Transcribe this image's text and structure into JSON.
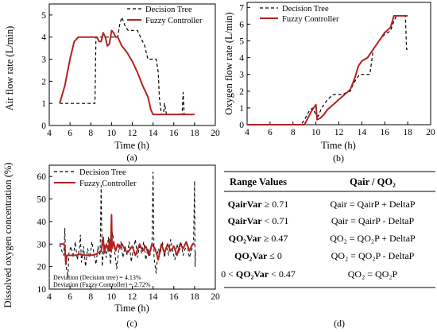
{
  "chart_data": [
    {
      "type": "line",
      "panel_label": "(a)",
      "xlabel": "Time (h)",
      "ylabel": "Air flow rate (L/min)",
      "xlim": [
        4,
        20
      ],
      "ylim": [
        0,
        5.5
      ],
      "xticks": [
        4,
        6,
        8,
        10,
        12,
        14,
        16,
        18,
        20
      ],
      "yticks": [
        0,
        1,
        2,
        3,
        4,
        5
      ],
      "grid": false,
      "legend_position": "top-right",
      "series": [
        {
          "name": "Decision Tree",
          "color": "#000000",
          "dashed": true,
          "points": [
            [
              5,
              1
            ],
            [
              8.4,
              1
            ],
            [
              8.5,
              4
            ],
            [
              10.6,
              4
            ],
            [
              10.8,
              4.6
            ],
            [
              11.0,
              4.9
            ],
            [
              11.3,
              4.5
            ],
            [
              11.6,
              4.3
            ],
            [
              12.5,
              4.3
            ],
            [
              12.8,
              4.0
            ],
            [
              13.2,
              3.6
            ],
            [
              13.5,
              3.0
            ],
            [
              14.3,
              3.0
            ],
            [
              14.5,
              2.4
            ],
            [
              14.6,
              1.3
            ],
            [
              14.8,
              0.5
            ],
            [
              15.0,
              0.5
            ],
            [
              15.1,
              1.0
            ],
            [
              15.3,
              0.5
            ],
            [
              16.8,
              0.5
            ],
            [
              16.9,
              1.5
            ],
            [
              17.0,
              0.5
            ],
            [
              18.0,
              0.5
            ]
          ]
        },
        {
          "name": "Fuzzy Controller",
          "color": "#b22222",
          "dashed": false,
          "points": [
            [
              5,
              1
            ],
            [
              5.5,
              1.8
            ],
            [
              6,
              3.0
            ],
            [
              6.4,
              3.8
            ],
            [
              6.8,
              4.0
            ],
            [
              8.6,
              4.0
            ],
            [
              8.8,
              3.8
            ],
            [
              9.0,
              3.8
            ],
            [
              9.2,
              4.2
            ],
            [
              9.4,
              4.0
            ],
            [
              9.6,
              3.6
            ],
            [
              9.8,
              3.7
            ],
            [
              10.0,
              4.3
            ],
            [
              10.2,
              4.2
            ],
            [
              10.4,
              4.0
            ],
            [
              10.6,
              4.0
            ],
            [
              11.0,
              3.6
            ],
            [
              11.5,
              3.3
            ],
            [
              12.0,
              2.9
            ],
            [
              12.5,
              2.4
            ],
            [
              13.0,
              1.8
            ],
            [
              13.5,
              1.3
            ],
            [
              13.8,
              0.7
            ],
            [
              14.0,
              0.5
            ],
            [
              18.0,
              0.5
            ]
          ]
        }
      ]
    },
    {
      "type": "line",
      "panel_label": "(b)",
      "xlabel": "Time (h)",
      "ylabel": "Oxygen flow rate (L/min)",
      "xlim": [
        4,
        20
      ],
      "ylim": [
        0,
        7.3
      ],
      "xticks": [
        4,
        6,
        8,
        10,
        12,
        14,
        16,
        18,
        20
      ],
      "yticks": [
        0,
        1,
        2,
        3,
        4,
        5,
        6,
        7
      ],
      "grid": false,
      "legend_position": "top-left",
      "series": [
        {
          "name": "Decision Tree",
          "color": "#000000",
          "dashed": true,
          "points": [
            [
              4,
              0
            ],
            [
              8.7,
              0
            ],
            [
              9.0,
              0.3
            ],
            [
              9.4,
              0.8
            ],
            [
              9.7,
              1.0
            ],
            [
              10.0,
              0.6
            ],
            [
              10.2,
              0.5
            ],
            [
              10.5,
              1.0
            ],
            [
              11.0,
              1.5
            ],
            [
              11.5,
              1.8
            ],
            [
              12.3,
              1.8
            ],
            [
              12.6,
              1.9
            ],
            [
              13.0,
              2.0
            ],
            [
              13.3,
              2.5
            ],
            [
              13.8,
              3.0
            ],
            [
              14.7,
              3.0
            ],
            [
              15.0,
              4.5
            ],
            [
              15.5,
              5.0
            ],
            [
              16.0,
              5.4
            ],
            [
              16.5,
              5.6
            ],
            [
              16.7,
              6.0
            ],
            [
              17.0,
              6.5
            ],
            [
              17.8,
              6.5
            ],
            [
              17.9,
              4.5
            ],
            [
              18.0,
              4.5
            ]
          ]
        },
        {
          "name": "Fuzzy Controller",
          "color": "#b22222",
          "dashed": false,
          "points": [
            [
              4,
              0
            ],
            [
              9.0,
              0
            ],
            [
              9.3,
              0.4
            ],
            [
              9.6,
              0.8
            ],
            [
              9.9,
              1.1
            ],
            [
              10.0,
              1.2
            ],
            [
              10.1,
              0.3
            ],
            [
              10.4,
              0.4
            ],
            [
              10.7,
              0.6
            ],
            [
              11.0,
              0.9
            ],
            [
              11.5,
              1.2
            ],
            [
              12.0,
              1.5
            ],
            [
              12.5,
              1.8
            ],
            [
              13.0,
              2.1
            ],
            [
              13.4,
              2.8
            ],
            [
              13.7,
              3.5
            ],
            [
              14.0,
              3.8
            ],
            [
              14.5,
              4.0
            ],
            [
              15.0,
              4.5
            ],
            [
              15.5,
              5.0
            ],
            [
              16.0,
              5.5
            ],
            [
              16.5,
              5.8
            ],
            [
              16.8,
              6.5
            ],
            [
              18.0,
              6.5
            ]
          ]
        }
      ]
    },
    {
      "type": "line",
      "panel_label": "(c)",
      "xlabel": "Time (h)",
      "ylabel": "Dissolved oxygen concentration (%)",
      "xlim": [
        4,
        20
      ],
      "ylim": [
        10,
        65
      ],
      "xticks": [
        4,
        6,
        8,
        10,
        12,
        14,
        16,
        18,
        20
      ],
      "yticks": [
        10,
        20,
        30,
        40,
        50,
        60
      ],
      "grid": false,
      "legend_position": "top-left",
      "annotations": [
        "Deviation (Decision tree) = 4.13%",
        "Deviation (Fuzzy Controller) = 2.72%"
      ],
      "series": [
        {
          "name": "Decision Tree",
          "color": "#000000",
          "dashed": true,
          "points": [
            [
              5.0,
              30
            ],
            [
              5.2,
              27
            ],
            [
              5.4,
              25
            ],
            [
              5.5,
              37
            ],
            [
              5.6,
              21
            ],
            [
              5.8,
              15
            ],
            [
              5.9,
              26
            ],
            [
              6.1,
              29
            ],
            [
              6.3,
              24
            ],
            [
              6.5,
              31
            ],
            [
              6.7,
              23
            ],
            [
              6.9,
              28
            ],
            [
              7.0,
              34
            ],
            [
              7.1,
              22
            ],
            [
              7.3,
              29
            ],
            [
              7.5,
              20
            ],
            [
              7.7,
              28
            ],
            [
              7.9,
              24
            ],
            [
              8.1,
              31
            ],
            [
              8.3,
              26
            ],
            [
              8.5,
              21
            ],
            [
              8.7,
              29
            ],
            [
              8.9,
              25
            ],
            [
              9.0,
              56
            ],
            [
              9.1,
              20
            ],
            [
              9.3,
              30
            ],
            [
              9.5,
              24
            ],
            [
              9.7,
              33
            ],
            [
              9.9,
              21
            ],
            [
              10.1,
              35
            ],
            [
              10.3,
              27
            ],
            [
              10.5,
              19
            ],
            [
              10.7,
              28
            ],
            [
              10.9,
              31
            ],
            [
              11.1,
              24
            ],
            [
              11.3,
              29
            ],
            [
              11.5,
              25
            ],
            [
              11.7,
              31
            ],
            [
              11.9,
              22
            ],
            [
              12.1,
              28
            ],
            [
              12.3,
              32
            ],
            [
              12.5,
              24
            ],
            [
              12.7,
              29
            ],
            [
              12.9,
              26
            ],
            [
              13.1,
              31
            ],
            [
              13.3,
              23
            ],
            [
              13.5,
              28
            ],
            [
              13.7,
              25
            ],
            [
              13.9,
              30
            ],
            [
              14.0,
              62
            ],
            [
              14.1,
              24
            ],
            [
              14.3,
              17
            ],
            [
              14.5,
              28
            ],
            [
              14.7,
              26
            ],
            [
              14.9,
              31
            ],
            [
              15.1,
              24
            ],
            [
              15.3,
              29
            ],
            [
              15.5,
              25
            ],
            [
              15.7,
              32
            ],
            [
              15.9,
              27
            ],
            [
              16.1,
              23
            ],
            [
              16.3,
              30
            ],
            [
              16.5,
              26
            ],
            [
              16.7,
              31
            ],
            [
              16.9,
              25
            ],
            [
              17.1,
              28
            ],
            [
              17.3,
              30
            ],
            [
              17.5,
              24
            ],
            [
              17.7,
              27
            ],
            [
              17.9,
              31
            ],
            [
              18.0,
              58
            ],
            [
              18.05,
              20
            ],
            [
              18.1,
              27
            ]
          ]
        },
        {
          "name": "Fuzzy Controller",
          "color": "#b22222",
          "dashed": false,
          "points": [
            [
              5.0,
              30
            ],
            [
              5.4,
              30
            ],
            [
              5.5,
              29
            ],
            [
              5.6,
              21
            ],
            [
              5.7,
              25
            ],
            [
              6.0,
              25
            ],
            [
              6.5,
              25
            ],
            [
              7.0,
              25.5
            ],
            [
              7.5,
              25
            ],
            [
              8.0,
              25
            ],
            [
              8.5,
              25.5
            ],
            [
              9.0,
              27
            ],
            [
              9.2,
              33
            ],
            [
              9.3,
              26
            ],
            [
              9.5,
              30
            ],
            [
              9.7,
              27
            ],
            [
              9.8,
              32
            ],
            [
              9.9,
              27
            ],
            [
              10.0,
              43
            ],
            [
              10.05,
              28
            ],
            [
              10.2,
              31
            ],
            [
              10.4,
              27
            ],
            [
              10.6,
              30
            ],
            [
              10.8,
              28
            ],
            [
              11.0,
              30
            ],
            [
              11.5,
              26
            ],
            [
              12.0,
              29
            ],
            [
              12.3,
              25
            ],
            [
              12.7,
              30
            ],
            [
              13.0,
              27
            ],
            [
              13.3,
              29
            ],
            [
              13.6,
              25
            ],
            [
              13.9,
              30
            ],
            [
              14.2,
              28
            ],
            [
              14.5,
              23
            ],
            [
              14.8,
              30
            ],
            [
              15.1,
              26
            ],
            [
              15.4,
              30
            ],
            [
              15.7,
              27
            ],
            [
              16.0,
              29
            ],
            [
              16.3,
              25
            ],
            [
              16.6,
              30
            ],
            [
              16.9,
              28
            ],
            [
              17.2,
              31
            ],
            [
              17.5,
              27
            ],
            [
              17.8,
              30
            ],
            [
              18.0,
              30
            ]
          ]
        }
      ]
    },
    {
      "type": "table",
      "panel_label": "(d)",
      "columns": [
        "Range Values",
        "Qair / QO₂"
      ],
      "rows": [
        {
          "var": "QairVar",
          "post": " ≥ 0.71",
          "rule": "Qair = QairP + DeltaP"
        },
        {
          "var": "QairVar",
          "post": " < 0.71",
          "rule": "Qair = QairP - DeltaP"
        },
        {
          "var": "QO₂Var",
          "post": " ≥ 0.47",
          "rule": "QO₂ = QO₂P + DeltaP"
        },
        {
          "var": "QO₂Var",
          "post": " ≤ 0",
          "rule": "QO₂ = QO₂P - DeltaP"
        },
        {
          "pre": "0 < ",
          "var": "QO₂Var",
          "post": " < 0.47",
          "rule": "QO₂ = QO₂P"
        }
      ]
    }
  ]
}
